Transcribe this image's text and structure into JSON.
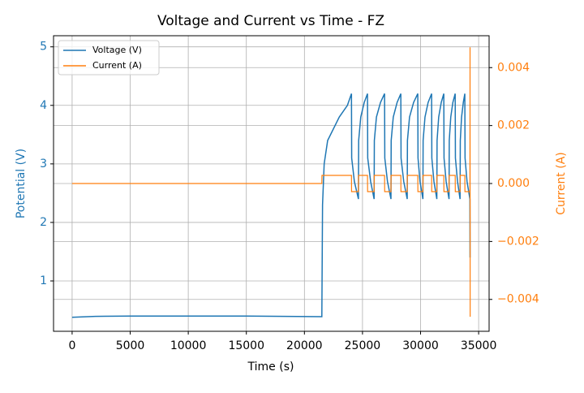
{
  "chart_data": {
    "type": "line",
    "title": "Voltage and Current vs Time - FZ",
    "x_label": "Time (s)",
    "y_label": "Potential (V)",
    "y2_label": "Current (A)",
    "xlim": [
      -1600,
      35900
    ],
    "ylim": [
      0.14,
      5.19
    ],
    "y2lim": [
      -0.0051,
      0.0051
    ],
    "xticks": [
      0,
      5000,
      10000,
      15000,
      20000,
      25000,
      30000,
      35000
    ],
    "yticks": [
      1,
      2,
      3,
      4,
      5
    ],
    "y2ticks": [
      {
        "value": -0.004,
        "label": "−0.004"
      },
      {
        "value": -0.002,
        "label": "−0.002"
      },
      {
        "value": 0,
        "label": "0.000"
      },
      0.002,
      0.004
    ],
    "grid": true,
    "legend": "upper left",
    "series": [
      {
        "name": "Voltage (V)",
        "color": "#1f77b4",
        "axis": "y",
        "x": [
          0,
          2000,
          5000,
          15000,
          21500,
          21560,
          21700,
          22000,
          23000,
          23700,
          24050,
          24070,
          24300,
          24650,
          24670,
          24850,
          25150,
          25430,
          25450,
          25700,
          26000,
          26020,
          26200,
          26550,
          26900,
          26920,
          27150,
          27450,
          27470,
          27650,
          27980,
          28300,
          28320,
          28550,
          28850,
          28870,
          29050,
          29400,
          29760,
          29780,
          29950,
          30200,
          30220,
          30380,
          30650,
          30950,
          30970,
          31150,
          31400,
          31420,
          31560,
          31780,
          32000,
          32020,
          32200,
          32450,
          32470,
          32600,
          32780,
          32980,
          33000,
          33180,
          33400,
          33420,
          33530,
          33680,
          33810,
          33830,
          34000,
          34250,
          34260
        ],
        "values": [
          0.38,
          0.395,
          0.4,
          0.4,
          0.39,
          2.3,
          3.0,
          3.4,
          3.8,
          4.0,
          4.2,
          3.1,
          2.7,
          2.4,
          3.4,
          3.8,
          4.05,
          4.2,
          3.1,
          2.7,
          2.4,
          3.4,
          3.8,
          4.05,
          4.2,
          3.1,
          2.7,
          2.4,
          3.4,
          3.8,
          4.05,
          4.2,
          3.1,
          2.7,
          2.4,
          3.4,
          3.8,
          4.05,
          4.2,
          3.1,
          2.7,
          2.4,
          3.4,
          3.8,
          4.05,
          4.2,
          3.1,
          2.7,
          2.4,
          3.4,
          3.8,
          4.05,
          4.2,
          3.1,
          2.7,
          2.4,
          3.4,
          3.8,
          4.05,
          4.2,
          3.1,
          2.7,
          2.4,
          3.4,
          3.8,
          4.05,
          4.2,
          3.1,
          2.7,
          2.4,
          1.4
        ]
      },
      {
        "name": "Current (A)",
        "color": "#ff7f0e",
        "axis": "y2",
        "x": [
          0,
          21500,
          21510,
          24050,
          24060,
          24650,
          24660,
          25430,
          25440,
          26000,
          26010,
          26900,
          26910,
          27450,
          27460,
          28300,
          28310,
          28850,
          28860,
          29760,
          29770,
          30200,
          30210,
          30950,
          30960,
          31400,
          31410,
          32000,
          32010,
          32450,
          32460,
          32980,
          32990,
          33400,
          33410,
          33810,
          33820,
          34250,
          34260,
          34270
        ],
        "values": [
          0,
          0,
          0.00028,
          0.00028,
          -0.00028,
          -0.00028,
          0.00028,
          0.00028,
          -0.00028,
          -0.00028,
          0.00028,
          0.00028,
          -0.00028,
          -0.00028,
          0.00028,
          0.00028,
          -0.00028,
          -0.00028,
          0.00028,
          0.00028,
          -0.00028,
          -0.00028,
          0.00028,
          0.00028,
          -0.00028,
          -0.00028,
          0.00028,
          0.00028,
          -0.00028,
          -0.00028,
          0.00028,
          0.00028,
          -0.00028,
          -0.00028,
          0.00028,
          0.00028,
          -0.00028,
          -0.00028,
          0.0047,
          -0.0046
        ]
      }
    ]
  }
}
